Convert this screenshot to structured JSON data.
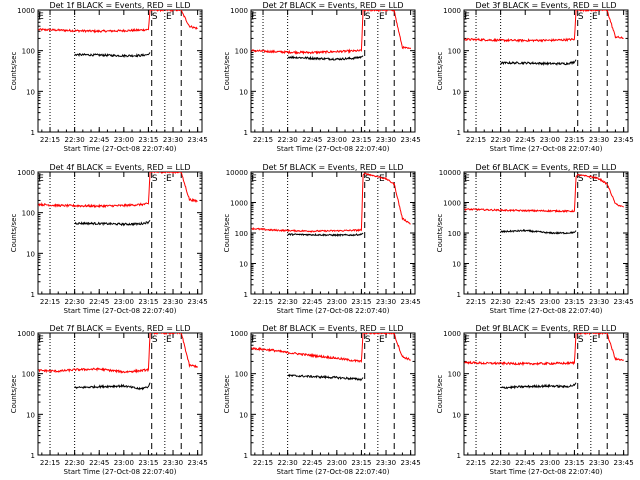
{
  "page": {
    "background": "#ffffff"
  },
  "colors": {
    "events": "#000000",
    "lld": "#ff0000",
    "axes": "#000000"
  },
  "chart_data": [
    {
      "type": "line",
      "title": "Det 1f  BLACK = Events, RED = LLD",
      "ylabel": "Counts/sec",
      "xlabel": "Start Time (27-Oct-08 22:07:40)",
      "ylim": [
        1,
        1000
      ],
      "yscale": "log",
      "ytick_labels": [
        "1",
        "10",
        "100",
        "1000"
      ],
      "xlim": [
        "22:07:40",
        "23:47:40"
      ],
      "x_ticks": [
        "22:15",
        "22:30",
        "22:45",
        "23:00",
        "23:15",
        "23:30",
        "23:45"
      ],
      "markers": {
        "S": "S",
        "E": "E"
      },
      "dotted_lines": [
        "22:15",
        "22:30"
      ],
      "dashed_lines": [
        "23:17",
        "23:35"
      ],
      "dotted_lines_late": [
        "23:25"
      ],
      "series": [
        {
          "color": "#ff0000",
          "x": [
            "22:08",
            "22:20",
            "22:30",
            "22:45",
            "23:00",
            "23:10",
            "23:15",
            "23:16",
            "23:17",
            "23:35",
            "23:36",
            "23:40",
            "23:45"
          ],
          "values": [
            330,
            320,
            310,
            300,
            310,
            320,
            330,
            1000,
            1000,
            1000,
            800,
            400,
            350
          ]
        },
        {
          "color": "#000000",
          "x": [
            "22:30",
            "22:45",
            "23:00",
            "23:10",
            "23:15",
            "23:16"
          ],
          "values": [
            80,
            78,
            75,
            76,
            80,
            90
          ]
        }
      ]
    },
    {
      "type": "line",
      "title": "Det 2f  BLACK = Events, RED = LLD",
      "ylabel": "Counts/sec",
      "xlabel": "Start Time (27-Oct-08 22:07:40)",
      "ylim": [
        1,
        1000
      ],
      "yscale": "log",
      "ytick_labels": [
        "1",
        "10",
        "100",
        "1000"
      ],
      "xlim": [
        "22:07:40",
        "23:47:40"
      ],
      "x_ticks": [
        "22:15",
        "22:30",
        "22:45",
        "23:00",
        "23:15",
        "23:30",
        "23:45"
      ],
      "markers": {
        "S": "S",
        "E": "E"
      },
      "dotted_lines": [
        "22:15",
        "22:30"
      ],
      "dashed_lines": [
        "23:17",
        "23:35"
      ],
      "dotted_lines_late": [
        "23:25"
      ],
      "series": [
        {
          "color": "#ff0000",
          "x": [
            "22:08",
            "22:20",
            "22:30",
            "22:45",
            "23:00",
            "23:10",
            "23:15",
            "23:16",
            "23:17",
            "23:35",
            "23:36",
            "23:40",
            "23:45"
          ],
          "values": [
            100,
            95,
            92,
            90,
            95,
            98,
            100,
            1000,
            1000,
            1000,
            600,
            120,
            110
          ]
        },
        {
          "color": "#000000",
          "x": [
            "22:30",
            "22:45",
            "23:00",
            "23:10",
            "23:15",
            "23:16"
          ],
          "values": [
            70,
            65,
            62,
            65,
            70,
            75
          ]
        }
      ]
    },
    {
      "type": "line",
      "title": "Det 3f  BLACK = Events, RED = LLD",
      "ylabel": "Counts/sec",
      "xlabel": "Start Time (27-Oct-08 22:07:40)",
      "ylim": [
        1,
        1000
      ],
      "yscale": "log",
      "ytick_labels": [
        "1",
        "10",
        "100",
        "1000"
      ],
      "xlim": [
        "22:07:40",
        "23:47:40"
      ],
      "x_ticks": [
        "22:15",
        "22:30",
        "22:45",
        "23:00",
        "23:15",
        "23:30",
        "23:45"
      ],
      "markers": {
        "S": "S",
        "E": "E"
      },
      "dotted_lines": [
        "22:15",
        "22:30"
      ],
      "dashed_lines": [
        "23:17",
        "23:35"
      ],
      "dotted_lines_late": [
        "23:25"
      ],
      "series": [
        {
          "color": "#ff0000",
          "x": [
            "22:08",
            "22:20",
            "22:30",
            "22:45",
            "23:00",
            "23:10",
            "23:15",
            "23:16",
            "23:17",
            "23:35",
            "23:36",
            "23:40",
            "23:45"
          ],
          "values": [
            190,
            185,
            180,
            178,
            180,
            185,
            190,
            1000,
            1000,
            1000,
            700,
            220,
            200
          ]
        },
        {
          "color": "#000000",
          "x": [
            "22:30",
            "22:45",
            "23:00",
            "23:10",
            "23:15",
            "23:16"
          ],
          "values": [
            50,
            50,
            48,
            48,
            52,
            60
          ]
        }
      ]
    },
    {
      "type": "line",
      "title": "Det 4f  BLACK = Events, RED = LLD",
      "ylabel": "Counts/sec",
      "xlabel": "Start Time (27-Oct-08 22:07:40)",
      "ylim": [
        1,
        1000
      ],
      "yscale": "log",
      "ytick_labels": [
        "1",
        "10",
        "100",
        "1000"
      ],
      "xlim": [
        "22:07:40",
        "23:47:40"
      ],
      "x_ticks": [
        "22:15",
        "22:30",
        "22:45",
        "23:00",
        "23:15",
        "23:30",
        "23:45"
      ],
      "markers": {
        "S": "S",
        "E": "E"
      },
      "dotted_lines": [
        "22:15",
        "22:30"
      ],
      "dashed_lines": [
        "23:17",
        "23:35"
      ],
      "dotted_lines_late": [
        "23:25"
      ],
      "series": [
        {
          "color": "#ff0000",
          "x": [
            "22:08",
            "22:20",
            "22:30",
            "22:45",
            "23:00",
            "23:10",
            "23:15",
            "23:16",
            "23:17",
            "23:35",
            "23:36",
            "23:40",
            "23:45"
          ],
          "values": [
            160,
            150,
            148,
            145,
            150,
            158,
            165,
            1000,
            1000,
            1000,
            700,
            210,
            190
          ]
        },
        {
          "color": "#000000",
          "x": [
            "22:30",
            "22:45",
            "23:00",
            "23:10",
            "23:15",
            "23:16"
          ],
          "values": [
            55,
            54,
            52,
            53,
            58,
            65
          ]
        }
      ]
    },
    {
      "type": "line",
      "title": "Det 5f  BLACK = Events, RED = LLD",
      "ylabel": "Counts/sec",
      "xlabel": "Start Time (27-Oct-08 22:07:40)",
      "ylim": [
        1,
        10000
      ],
      "yscale": "log",
      "ytick_labels": [
        "1",
        "10",
        "100",
        "1000",
        "10000"
      ],
      "xlim": [
        "22:07:40",
        "23:47:40"
      ],
      "x_ticks": [
        "22:15",
        "22:30",
        "22:45",
        "23:00",
        "23:15",
        "23:30",
        "23:45"
      ],
      "markers": {
        "S": "S",
        "E": "E"
      },
      "dotted_lines": [
        "22:15",
        "22:30"
      ],
      "dashed_lines": [
        "23:17",
        "23:35"
      ],
      "dotted_lines_late": [
        "23:25"
      ],
      "series": [
        {
          "color": "#ff0000",
          "x": [
            "22:08",
            "22:20",
            "22:30",
            "22:45",
            "23:00",
            "23:10",
            "23:15",
            "23:16",
            "23:17",
            "23:25",
            "23:30",
            "23:35",
            "23:40",
            "23:45"
          ],
          "values": [
            140,
            125,
            120,
            115,
            118,
            122,
            125,
            8000,
            9000,
            7000,
            6000,
            4000,
            300,
            200
          ]
        },
        {
          "color": "#000000",
          "x": [
            "22:30",
            "22:45",
            "23:00",
            "23:10",
            "23:15",
            "23:16"
          ],
          "values": [
            90,
            88,
            85,
            86,
            90,
            100
          ]
        }
      ]
    },
    {
      "type": "line",
      "title": "Det 6f  BLACK = Events, RED = LLD",
      "ylabel": "Counts/sec",
      "xlabel": "Start Time (27-Oct-08 22:07:40)",
      "ylim": [
        1,
        10000
      ],
      "yscale": "log",
      "ytick_labels": [
        "1",
        "10",
        "100",
        "1000",
        "10000"
      ],
      "xlim": [
        "22:07:40",
        "23:47:40"
      ],
      "x_ticks": [
        "22:15",
        "22:30",
        "22:45",
        "23:00",
        "23:15",
        "23:30",
        "23:45"
      ],
      "markers": {
        "S": "S",
        "E": "E"
      },
      "dotted_lines": [
        "22:15",
        "22:30"
      ],
      "dashed_lines": [
        "23:17",
        "23:35"
      ],
      "dotted_lines_late": [
        "23:25"
      ],
      "series": [
        {
          "color": "#ff0000",
          "x": [
            "22:08",
            "22:20",
            "22:30",
            "22:45",
            "23:00",
            "23:10",
            "23:15",
            "23:16",
            "23:17",
            "23:25",
            "23:30",
            "23:35",
            "23:40",
            "23:45"
          ],
          "values": [
            600,
            580,
            560,
            540,
            530,
            520,
            520,
            7000,
            8000,
            7000,
            6000,
            4000,
            900,
            700
          ]
        },
        {
          "color": "#000000",
          "x": [
            "22:30",
            "22:45",
            "23:00",
            "23:10",
            "23:15",
            "23:16"
          ],
          "values": [
            110,
            120,
            100,
            100,
            105,
            120
          ]
        }
      ]
    },
    {
      "type": "line",
      "title": "Det 7f  BLACK = Events, RED = LLD",
      "ylabel": "Counts/sec",
      "xlabel": "Start Time (27-Oct-08 22:07:40)",
      "ylim": [
        1,
        1000
      ],
      "yscale": "log",
      "ytick_labels": [
        "1",
        "10",
        "100",
        "1000"
      ],
      "xlim": [
        "22:07:40",
        "23:47:40"
      ],
      "x_ticks": [
        "22:15",
        "22:30",
        "22:45",
        "23:00",
        "23:15",
        "23:30",
        "23:45"
      ],
      "markers": {
        "S": "S",
        "E": "E"
      },
      "dotted_lines": [
        "22:15",
        "22:30"
      ],
      "dashed_lines": [
        "23:17",
        "23:35"
      ],
      "dotted_lines_late": [
        "23:25"
      ],
      "series": [
        {
          "color": "#ff0000",
          "x": [
            "22:08",
            "22:20",
            "22:30",
            "22:45",
            "23:00",
            "23:10",
            "23:15",
            "23:16",
            "23:17",
            "23:35",
            "23:36",
            "23:40",
            "23:45"
          ],
          "values": [
            120,
            115,
            125,
            130,
            110,
            118,
            125,
            1000,
            1000,
            1000,
            700,
            160,
            150
          ]
        },
        {
          "color": "#000000",
          "x": [
            "22:30",
            "22:45",
            "23:00",
            "23:10",
            "23:15",
            "23:16"
          ],
          "values": [
            45,
            48,
            50,
            42,
            48,
            60
          ]
        }
      ]
    },
    {
      "type": "line",
      "title": "Det 8f  BLACK = Events, RED = LLD",
      "ylabel": "Counts/sec",
      "xlabel": "Start Time (27-Oct-08 22:07:40)",
      "ylim": [
        1,
        1000
      ],
      "yscale": "log",
      "ytick_labels": [
        "1",
        "10",
        "100",
        "1000"
      ],
      "xlim": [
        "22:07:40",
        "23:47:40"
      ],
      "x_ticks": [
        "22:15",
        "22:30",
        "22:45",
        "23:00",
        "23:15",
        "23:30",
        "23:45"
      ],
      "markers": {
        "S": "S",
        "E": "E"
      },
      "dotted_lines": [
        "22:15",
        "22:30"
      ],
      "dashed_lines": [
        "23:17",
        "23:35"
      ],
      "dotted_lines_late": [
        "23:25"
      ],
      "series": [
        {
          "color": "#ff0000",
          "x": [
            "22:08",
            "22:20",
            "22:30",
            "22:45",
            "23:00",
            "23:10",
            "23:15",
            "23:16",
            "23:17",
            "23:35",
            "23:36",
            "23:40",
            "23:45"
          ],
          "values": [
            420,
            380,
            330,
            280,
            240,
            210,
            200,
            1000,
            1000,
            1000,
            700,
            260,
            220
          ]
        },
        {
          "color": "#000000",
          "x": [
            "22:30",
            "22:45",
            "23:00",
            "23:10",
            "23:15",
            "23:16"
          ],
          "values": [
            90,
            85,
            80,
            75,
            72,
            80
          ]
        }
      ]
    },
    {
      "type": "line",
      "title": "Det 9f  BLACK = Events, RED = LLD",
      "ylabel": "Counts/sec",
      "xlabel": "Start Time (27-Oct-08 22:07:40)",
      "ylim": [
        1,
        1000
      ],
      "yscale": "log",
      "ytick_labels": [
        "1",
        "10",
        "100",
        "1000"
      ],
      "xlim": [
        "22:07:40",
        "23:47:40"
      ],
      "x_ticks": [
        "22:15",
        "22:30",
        "22:45",
        "23:00",
        "23:15",
        "23:30",
        "23:45"
      ],
      "markers": {
        "S": "S",
        "E": "E"
      },
      "dotted_lines": [
        "22:15",
        "22:30"
      ],
      "dashed_lines": [
        "23:17",
        "23:35"
      ],
      "dotted_lines_late": [
        "23:25"
      ],
      "series": [
        {
          "color": "#ff0000",
          "x": [
            "22:08",
            "22:20",
            "22:30",
            "22:45",
            "23:00",
            "23:10",
            "23:15",
            "23:16",
            "23:17",
            "23:35",
            "23:36",
            "23:40",
            "23:45"
          ],
          "values": [
            190,
            180,
            180,
            175,
            178,
            180,
            185,
            1000,
            1000,
            1000,
            700,
            230,
            210
          ]
        },
        {
          "color": "#000000",
          "x": [
            "22:30",
            "22:45",
            "23:00",
            "23:10",
            "23:15",
            "23:16"
          ],
          "values": [
            45,
            48,
            50,
            48,
            52,
            60
          ]
        }
      ]
    }
  ]
}
